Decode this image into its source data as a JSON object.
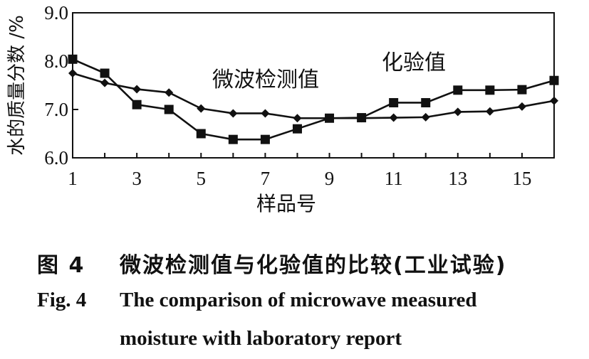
{
  "chart_data": {
    "type": "line",
    "title": "",
    "xlabel": "样品号",
    "ylabel": "水的质量分数 /%",
    "x": [
      1,
      2,
      3,
      4,
      5,
      6,
      7,
      8,
      9,
      10,
      11,
      12,
      13,
      14,
      15,
      16
    ],
    "xticks": [
      "1",
      "3",
      "5",
      "7",
      "9",
      "11",
      "13",
      "15"
    ],
    "xtick_values": [
      1,
      3,
      5,
      7,
      9,
      11,
      13,
      15
    ],
    "yticks": [
      "6.0",
      "7.0",
      "8.0",
      "9.0"
    ],
    "ytick_values": [
      6.0,
      7.0,
      8.0,
      9.0
    ],
    "xlim": [
      1,
      16
    ],
    "ylim": [
      6.0,
      9.0
    ],
    "grid": false,
    "series": [
      {
        "name": "微波检测值",
        "marker": "diamond",
        "values": [
          7.75,
          7.55,
          7.42,
          7.35,
          7.02,
          6.92,
          6.92,
          6.82,
          6.82,
          6.82,
          6.83,
          6.84,
          6.95,
          6.96,
          7.06,
          7.18
        ]
      },
      {
        "name": "化验值",
        "marker": "square",
        "values": [
          8.04,
          7.75,
          7.1,
          7.0,
          6.5,
          6.38,
          6.38,
          6.6,
          6.82,
          6.83,
          7.14,
          7.14,
          7.4,
          7.4,
          7.41,
          7.6
        ]
      }
    ],
    "annotations": [
      "微波检测值",
      "化验值"
    ]
  },
  "caption": {
    "zh_label": "图 4",
    "zh_title": "微波检测值与化验值的比较(工业试验)",
    "en_label": "Fig. 4",
    "en_title_line1": "The comparison of microwave measured",
    "en_title_line2": "moisture with laboratory report"
  },
  "colors": {
    "ink": "#111111",
    "background": "#ffffff"
  }
}
